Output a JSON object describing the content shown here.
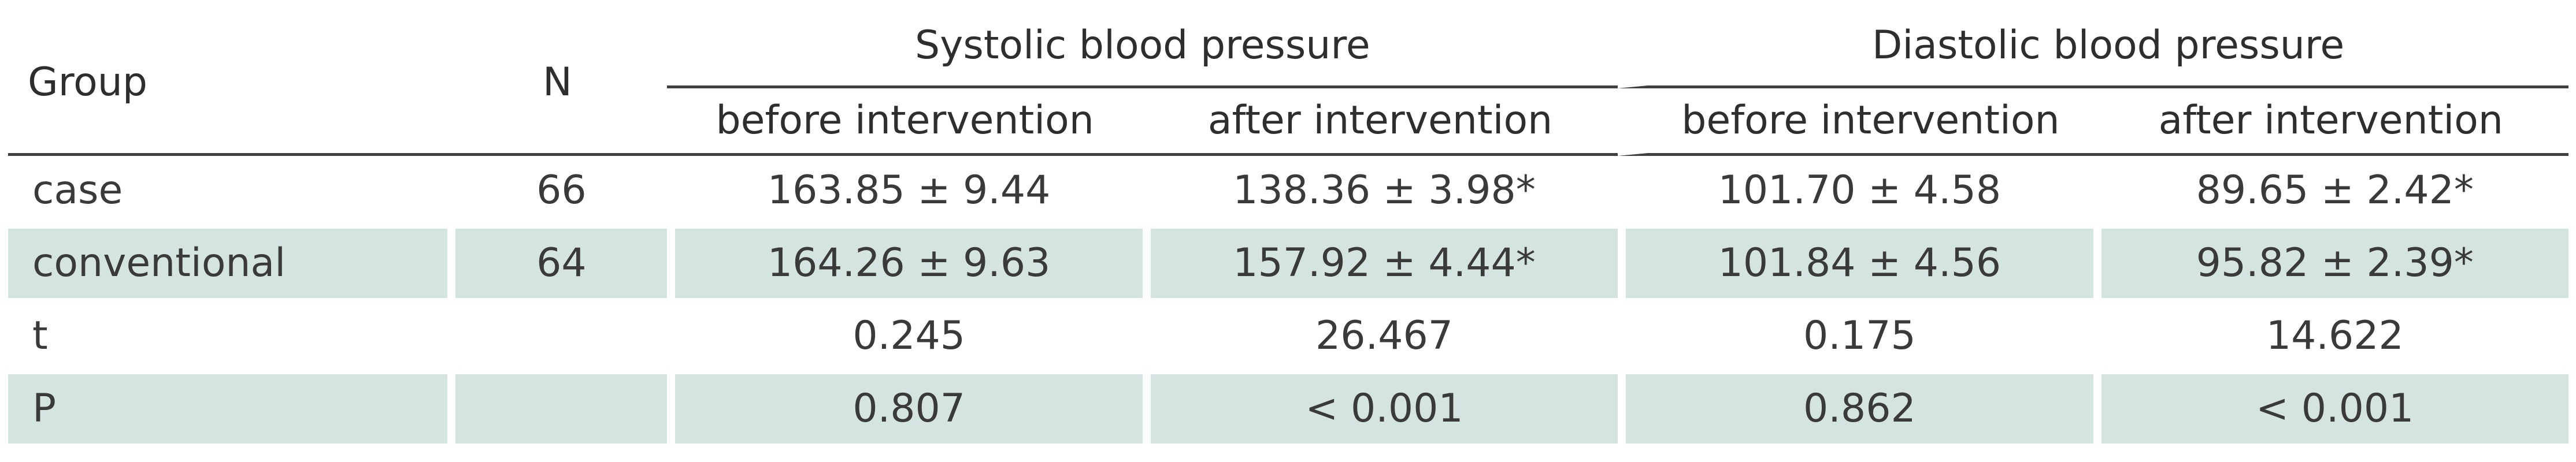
{
  "table": {
    "headers": {
      "group": "Group",
      "n": "N",
      "systolic": "Systolic blood pressure",
      "diastolic": "Diastolic blood pressure",
      "sub": [
        "before intervention",
        "after intervention",
        "before intervention",
        "after intervention"
      ]
    },
    "rows": [
      {
        "label": "case",
        "n": "66",
        "sys_before": "163.85 ± 9.44",
        "sys_after": "138.36 ± 3.98*",
        "dia_before": "101.70 ± 4.58",
        "dia_after": "89.65 ± 2.42*"
      },
      {
        "label": "conventional",
        "n": "64",
        "sys_before": "164.26 ± 9.63",
        "sys_after": "157.92 ± 4.44*",
        "dia_before": "101.84 ± 4.56",
        "dia_after": "95.82 ± 2.39*"
      },
      {
        "label": "t",
        "n": "",
        "sys_before": "0.245",
        "sys_after": "26.467",
        "dia_before": "0.175",
        "dia_after": "14.622"
      },
      {
        "label": "P",
        "n": "",
        "sys_before": "0.807",
        "sys_after": "< 0.001",
        "dia_before": "0.862",
        "dia_after": "< 0.001"
      }
    ]
  },
  "colors": {
    "row_shade": "#d4e4e0",
    "rule": "#404040",
    "text": "#3a3a3a"
  }
}
